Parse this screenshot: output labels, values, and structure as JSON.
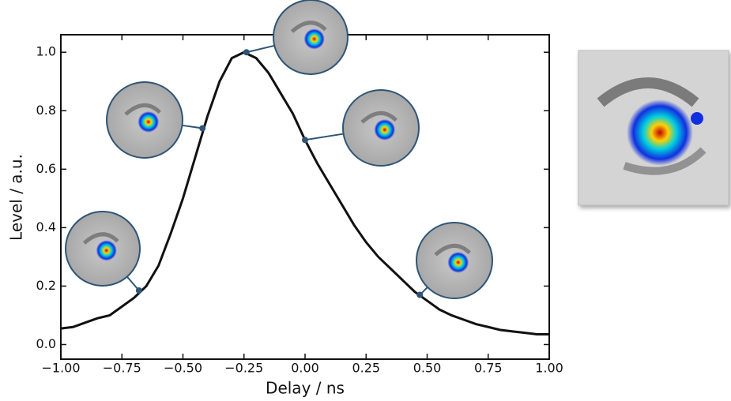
{
  "chart_data": {
    "type": "line",
    "xlabel": "Delay / ns",
    "ylabel": "Level / a.u.",
    "xlim": [
      -1,
      1
    ],
    "ylim": [
      -0.05,
      1.06
    ],
    "xticks": [
      {
        "value": -1,
        "label": "−1.00"
      },
      {
        "value": -0.75,
        "label": "−0.75"
      },
      {
        "value": -0.5,
        "label": "−0.50"
      },
      {
        "value": -0.25,
        "label": "−0.25"
      },
      {
        "value": 0,
        "label": "0.00"
      },
      {
        "value": 0.25,
        "label": "0.25"
      },
      {
        "value": 0.5,
        "label": "0.50"
      },
      {
        "value": 0.75,
        "label": "0.75"
      },
      {
        "value": 1,
        "label": "1.00"
      }
    ],
    "yticks": [
      {
        "value": 0,
        "label": "0.0"
      },
      {
        "value": 0.2,
        "label": "0.2"
      },
      {
        "value": 0.4,
        "label": "0.4"
      },
      {
        "value": 0.6,
        "label": "0.6"
      },
      {
        "value": 0.8,
        "label": "0.8"
      },
      {
        "value": 1,
        "label": "1.0"
      }
    ],
    "series": [
      {
        "color": "#111111",
        "x": [
          -1,
          -0.95,
          -0.9,
          -0.85,
          -0.8,
          -0.75,
          -0.7,
          -0.65,
          -0.6,
          -0.55,
          -0.5,
          -0.45,
          -0.4,
          -0.35,
          -0.3,
          -0.25,
          -0.2,
          -0.15,
          -0.1,
          -0.05,
          0,
          0.05,
          0.1,
          0.15,
          0.2,
          0.25,
          0.3,
          0.35,
          0.4,
          0.45,
          0.5,
          0.55,
          0.6,
          0.65,
          0.7,
          0.75,
          0.8,
          0.85,
          0.9,
          0.95,
          1
        ],
        "values": [
          0.055,
          0.06,
          0.075,
          0.09,
          0.1,
          0.13,
          0.16,
          0.2,
          0.27,
          0.38,
          0.5,
          0.64,
          0.78,
          0.9,
          0.98,
          1.0,
          0.98,
          0.93,
          0.86,
          0.79,
          0.7,
          0.62,
          0.55,
          0.48,
          0.41,
          0.35,
          0.3,
          0.26,
          0.22,
          0.18,
          0.15,
          0.12,
          0.1,
          0.085,
          0.07,
          0.06,
          0.05,
          0.045,
          0.04,
          0.035,
          0.035
        ]
      },
      {
        "color": "#2e5577",
        "x": [
          -0.68,
          -0.42,
          -0.24,
          0.0,
          0.47
        ],
        "values": [
          0.185,
          0.74,
          1.0,
          0.7,
          0.17
        ]
      }
    ]
  }
}
